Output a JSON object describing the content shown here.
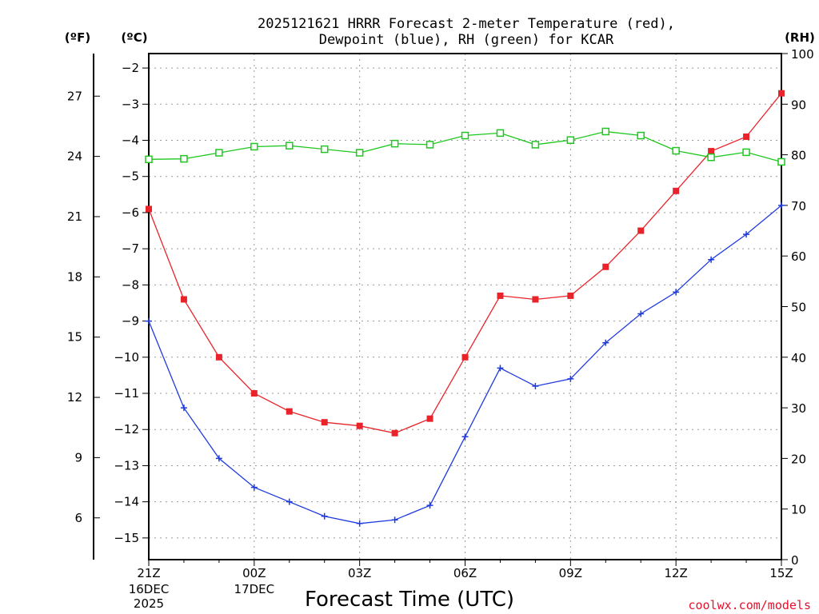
{
  "chart_data": {
    "type": "line",
    "title_line1": "2025121621 HRRR Forecast 2-meter Temperature (red),",
    "title_line2": "Dewpoint (blue), RH (green) for KCAR",
    "xlabel": "Forecast Time (UTC)",
    "credit": "coolwx.com/models",
    "left_unit_f": "(ºF)",
    "left_unit_c": "(ºC)",
    "right_unit": "(RH)",
    "x_hours": [
      0,
      1,
      2,
      3,
      4,
      5,
      6,
      7,
      8,
      9,
      10,
      11,
      12,
      13,
      14,
      15,
      16,
      17,
      18
    ],
    "x_ticks": [
      {
        "hour": 0,
        "label": "21Z",
        "line2": "16DEC",
        "line3": "2025"
      },
      {
        "hour": 3,
        "label": "00Z",
        "line2": "17DEC",
        "line3": ""
      },
      {
        "hour": 6,
        "label": "03Z",
        "line2": "",
        "line3": ""
      },
      {
        "hour": 9,
        "label": "06Z",
        "line2": "",
        "line3": ""
      },
      {
        "hour": 12,
        "label": "09Z",
        "line2": "",
        "line3": ""
      },
      {
        "hour": 15,
        "label": "12Z",
        "line2": "",
        "line3": ""
      },
      {
        "hour": 18,
        "label": "15Z",
        "line2": "",
        "line3": ""
      }
    ],
    "ylim_c": [
      -15.6,
      -1.6
    ],
    "yticks_c": [
      -2,
      -3,
      -4,
      -5,
      -6,
      -7,
      -8,
      -9,
      -10,
      -11,
      -12,
      -13,
      -14,
      -15
    ],
    "yticks_f": [
      27,
      24,
      21,
      18,
      15,
      12,
      9,
      6
    ],
    "ylim_rh": [
      0,
      100
    ],
    "yticks_rh": [
      0,
      10,
      20,
      30,
      40,
      50,
      60,
      70,
      80,
      90,
      100
    ],
    "series": [
      {
        "name": "Temperature",
        "color": "#e8242a",
        "marker": "filled-square",
        "values": [
          -5.9,
          -8.4,
          -10.0,
          -11.0,
          -11.5,
          -11.8,
          -11.9,
          -12.1,
          -11.7,
          -10.0,
          -8.3,
          -8.4,
          -8.3,
          -7.5,
          -6.5,
          -5.4,
          -4.3,
          -3.9,
          -2.7
        ]
      },
      {
        "name": "Dewpoint",
        "color": "#1f3be0",
        "marker": "plus",
        "values": [
          -9.0,
          -11.4,
          -12.8,
          -13.6,
          -14.0,
          -14.4,
          -14.6,
          -14.5,
          -14.1,
          -12.2,
          -10.3,
          -10.8,
          -10.6,
          -9.6,
          -8.8,
          -8.2,
          -7.3,
          -6.6,
          -5.8
        ]
      },
      {
        "name": "RH",
        "color": "#1ec81e",
        "marker": "open-square",
        "values": [
          79.1,
          79.2,
          80.4,
          81.6,
          81.8,
          81.1,
          80.4,
          82.2,
          82.0,
          83.8,
          84.3,
          82.0,
          82.9,
          84.6,
          83.8,
          80.8,
          79.5,
          80.5,
          78.6
        ]
      }
    ]
  }
}
